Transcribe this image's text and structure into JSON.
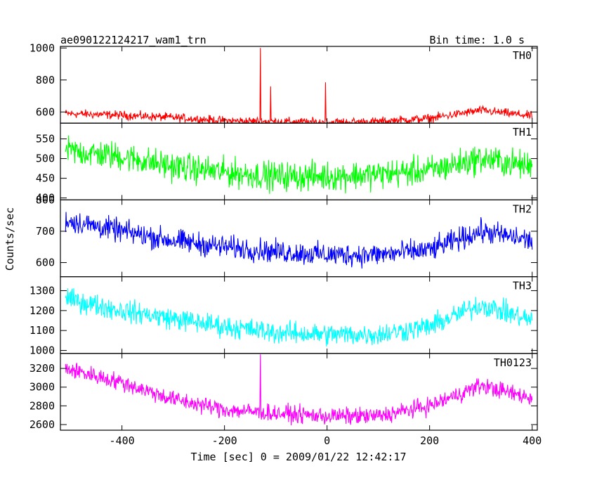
{
  "header": {
    "title": "ae090122124217_wam1_trn",
    "bin_time": "Bin time: 1.0 s"
  },
  "chart_data": {
    "type": "line",
    "xlabel": "Time [sec] 0 = 2009/01/22 12:42:17",
    "ylabel": "Counts/sec",
    "xlim": [
      -520,
      410
    ],
    "xticks": [
      -400,
      -200,
      0,
      200,
      400
    ],
    "time_range": [
      -510,
      400
    ],
    "panels": [
      {
        "name": "TH0",
        "color": "#ff0000",
        "ylim": [
          530,
          1010
        ],
        "yticks": [
          600,
          800,
          1000
        ],
        "base": [
          [
            -510,
            590
          ],
          [
            -400,
            580
          ],
          [
            -300,
            565
          ],
          [
            -200,
            545
          ],
          [
            -100,
            540
          ],
          [
            0,
            535
          ],
          [
            100,
            540
          ],
          [
            200,
            560
          ],
          [
            300,
            610
          ],
          [
            400,
            575
          ]
        ],
        "noise": 22,
        "spikes": [
          [
            -130,
            1000
          ],
          [
            -110,
            760
          ],
          [
            -3,
            785
          ]
        ]
      },
      {
        "name": "TH1",
        "color": "#00ff00",
        "ylim": [
          395,
          590
        ],
        "yticks": [
          400,
          450,
          500,
          550
        ],
        "base": [
          [
            -510,
            520
          ],
          [
            -400,
            505
          ],
          [
            -300,
            480
          ],
          [
            -200,
            465
          ],
          [
            -100,
            455
          ],
          [
            0,
            455
          ],
          [
            100,
            460
          ],
          [
            200,
            470
          ],
          [
            300,
            500
          ],
          [
            400,
            480
          ]
        ],
        "noise": 30,
        "spikes": []
      },
      {
        "name": "TH2",
        "color": "#0000ff",
        "ylim": [
          555,
          800
        ],
        "yticks": [
          600,
          700,
          800
        ],
        "base": [
          [
            -510,
            735
          ],
          [
            -400,
            700
          ],
          [
            -300,
            670
          ],
          [
            -200,
            650
          ],
          [
            -100,
            635
          ],
          [
            0,
            625
          ],
          [
            100,
            625
          ],
          [
            200,
            640
          ],
          [
            300,
            700
          ],
          [
            400,
            670
          ]
        ],
        "noise": 30,
        "spikes": []
      },
      {
        "name": "TH3",
        "color": "#00ffff",
        "ylim": [
          985,
          1370
        ],
        "yticks": [
          1000,
          1100,
          1200,
          1300
        ],
        "base": [
          [
            -510,
            1260
          ],
          [
            -400,
            1200
          ],
          [
            -300,
            1160
          ],
          [
            -200,
            1120
          ],
          [
            -100,
            1090
          ],
          [
            0,
            1080
          ],
          [
            100,
            1080
          ],
          [
            200,
            1120
          ],
          [
            300,
            1230
          ],
          [
            400,
            1150
          ]
        ],
        "noise": 45,
        "spikes": []
      },
      {
        "name": "TH0123",
        "color": "#ff00ff",
        "ylim": [
          2540,
          3360
        ],
        "yticks": [
          2600,
          2800,
          3000,
          3200
        ],
        "base": [
          [
            -510,
            3200
          ],
          [
            -400,
            3050
          ],
          [
            -300,
            2870
          ],
          [
            -200,
            2760
          ],
          [
            -100,
            2720
          ],
          [
            0,
            2690
          ],
          [
            100,
            2690
          ],
          [
            200,
            2800
          ],
          [
            300,
            3020
          ],
          [
            400,
            2880
          ]
        ],
        "noise": 75,
        "spikes": [
          [
            -130,
            3350
          ]
        ]
      }
    ]
  }
}
